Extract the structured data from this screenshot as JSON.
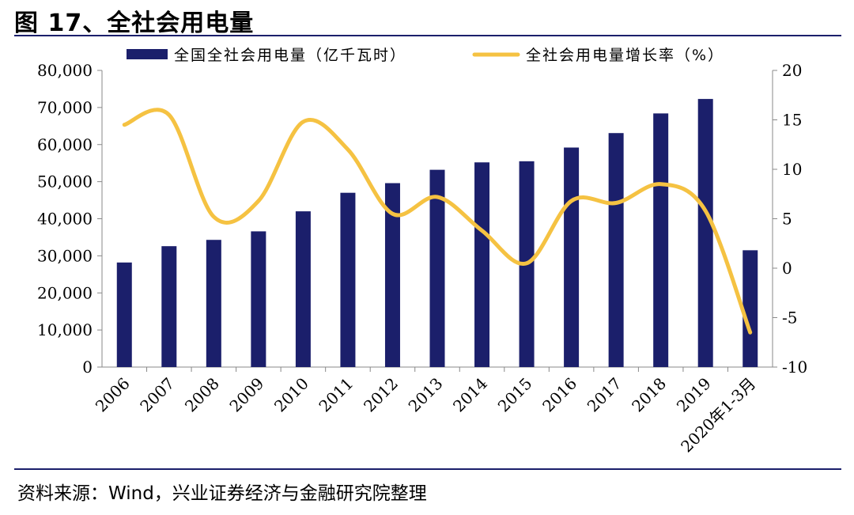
{
  "title": "图 17、全社会用电量",
  "source": "资料来源：Wind，兴业证券经济与金融研究院整理",
  "colors": {
    "bar": "#1b1f6b",
    "line": "#f5c242",
    "rule": "#1b1f6b"
  },
  "chart_data": {
    "type": "bar+line",
    "categories": [
      "2006",
      "2007",
      "2008",
      "2009",
      "2010",
      "2011",
      "2012",
      "2013",
      "2014",
      "2015",
      "2016",
      "2017",
      "2018",
      "2019",
      "2020年1-3月"
    ],
    "series": [
      {
        "name": "全国全社会用电量（亿千瓦时）",
        "type": "bar",
        "axis": "left",
        "values": [
          28200,
          32600,
          34300,
          36600,
          42000,
          47000,
          49600,
          53200,
          55200,
          55500,
          59200,
          63100,
          68400,
          72300,
          31500
        ]
      },
      {
        "name": "全社会用电量增长率（%）",
        "type": "line",
        "axis": "right",
        "values": [
          14.5,
          15.5,
          5.2,
          6.8,
          14.8,
          12.0,
          5.5,
          7.2,
          3.8,
          0.5,
          6.8,
          6.6,
          8.5,
          5.8,
          -6.5
        ]
      }
    ],
    "y_left": {
      "min": 0,
      "max": 80000,
      "ticks": [
        "0",
        "10,000",
        "20,000",
        "30,000",
        "40,000",
        "50,000",
        "60,000",
        "70,000",
        "80,000"
      ]
    },
    "y_right": {
      "min": -10,
      "max": 20,
      "ticks": [
        "-10",
        "-5",
        "0",
        "5",
        "10",
        "15",
        "20"
      ]
    },
    "legend": "top",
    "grid": false
  }
}
